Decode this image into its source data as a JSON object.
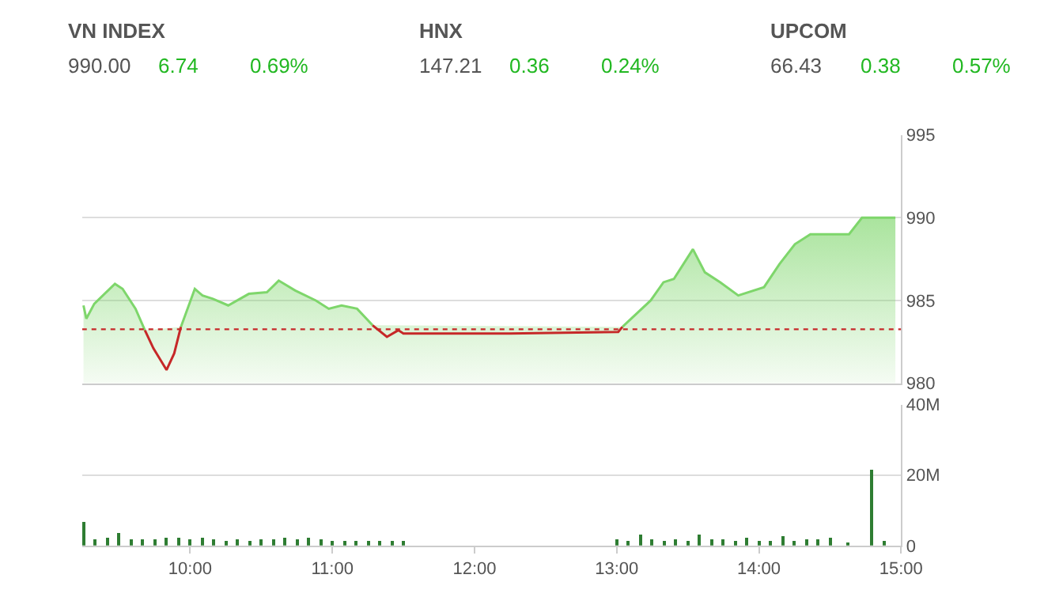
{
  "chart_data": [
    {
      "type": "other",
      "categories": [
        "VN INDEX",
        "HNX",
        "UPCOM"
      ],
      "annotations": [
        "990.00",
        "6.74",
        "0.69%",
        "147.21",
        "0.36",
        "0.24%",
        "66.43",
        "0.38",
        "0.57%"
      ]
    },
    {
      "type": "area",
      "x": [
        9.25,
        9.27,
        9.326,
        9.471,
        9.525,
        9.616,
        9.682,
        9.742,
        9.834,
        9.888,
        9.935,
        10.033,
        10.087,
        10.16,
        10.268,
        10.413,
        10.54,
        10.623,
        10.739,
        10.884,
        10.975,
        11.065,
        11.174,
        11.283,
        11.384,
        11.464,
        11.5,
        12.25,
        13.011,
        13.04,
        13.239,
        13.329,
        13.402,
        13.536,
        13.62,
        13.728,
        13.855,
        14.036,
        14.145,
        14.253,
        14.362,
        14.471,
        14.634,
        14.725,
        14.96
      ],
      "series": [
        {
          "type": "area",
          "color": "#7ed66b",
          "values": [
            984.7,
            983.9,
            984.8,
            986.0,
            985.7,
            984.5,
            983.2,
            null,
            null,
            null,
            983.4,
            985.7,
            985.3,
            985.1,
            984.7,
            985.4,
            985.5,
            986.2,
            985.6,
            985.0,
            984.5,
            984.7,
            984.5,
            983.5,
            null,
            null,
            null,
            null,
            null,
            983.4,
            985.0,
            986.1,
            986.3,
            988.1,
            986.7,
            986.1,
            985.3,
            985.8,
            987.2,
            988.4,
            989.0,
            989.0,
            989.0,
            990.0,
            990.0
          ]
        },
        {
          "type": "line",
          "color": "#c62828",
          "values": [
            null,
            null,
            null,
            null,
            null,
            null,
            983.2,
            982.1,
            980.8,
            981.8,
            983.4,
            null,
            null,
            null,
            null,
            null,
            null,
            null,
            null,
            null,
            null,
            null,
            null,
            983.5,
            982.8,
            983.2,
            983.0,
            983.0,
            983.1,
            983.4,
            null,
            null,
            null,
            null,
            null,
            null,
            null,
            null,
            null,
            null,
            null,
            null,
            null,
            null,
            null
          ]
        }
      ],
      "xlim": [
        9.24,
        15
      ],
      "ylim": [
        980,
        995
      ],
      "yticks": [
        980,
        985,
        990,
        995
      ],
      "ref_lines": [
        {
          "axis": "y",
          "value": 983.26,
          "color": "#c62828",
          "line_style": "dotted"
        }
      ],
      "tick_labels": "y",
      "grid": "y",
      "marker": "none"
    },
    {
      "type": "bar",
      "color": "#2e7d32",
      "x": [
        9.25,
        9.333,
        9.417,
        9.5,
        9.583,
        9.667,
        9.75,
        9.833,
        9.917,
        10.0,
        10.083,
        10.167,
        10.25,
        10.333,
        10.417,
        10.5,
        10.583,
        10.667,
        10.75,
        10.833,
        10.917,
        11.0,
        11.083,
        11.167,
        11.25,
        11.333,
        11.417,
        11.5,
        13.0,
        13.083,
        13.167,
        13.25,
        13.333,
        13.417,
        13.5,
        13.583,
        13.667,
        13.75,
        13.833,
        13.917,
        14.0,
        14.083,
        14.167,
        14.25,
        14.333,
        14.417,
        14.5,
        14.62,
        14.79,
        14.88
      ],
      "values": [
        7.0,
        2.0,
        2.5,
        3.5,
        2.0,
        1.8,
        2.0,
        2.5,
        2.2,
        2.0,
        2.2,
        1.8,
        1.5,
        1.8,
        1.6,
        1.8,
        1.8,
        2.5,
        2.0,
        2.2,
        1.8,
        1.6,
        1.5,
        1.2,
        1.5,
        1.4,
        1.3,
        1.2,
        2.0,
        1.5,
        3.0,
        2.0,
        1.5,
        1.8,
        1.5,
        3.0,
        2.0,
        1.8,
        1.5,
        2.5,
        1.5,
        1.2,
        2.8,
        1.5,
        1.8,
        1.8,
        2.5,
        1.0,
        21.8,
        1.3
      ],
      "xlim": [
        9.24,
        15
      ],
      "xticks": [
        {
          "value": 10,
          "label": "10:00"
        },
        {
          "value": 11,
          "label": "11:00"
        },
        {
          "value": 12,
          "label": "12:00"
        },
        {
          "value": 13,
          "label": "13:00"
        },
        {
          "value": 14,
          "label": "14:00"
        },
        {
          "value": 15,
          "label": "15:00"
        }
      ],
      "ylim": [
        0,
        40
      ],
      "yticks": [
        0,
        {
          "value": 20,
          "label": "20M"
        },
        {
          "value": 40,
          "label": "40M"
        }
      ],
      "grid": "y"
    }
  ]
}
